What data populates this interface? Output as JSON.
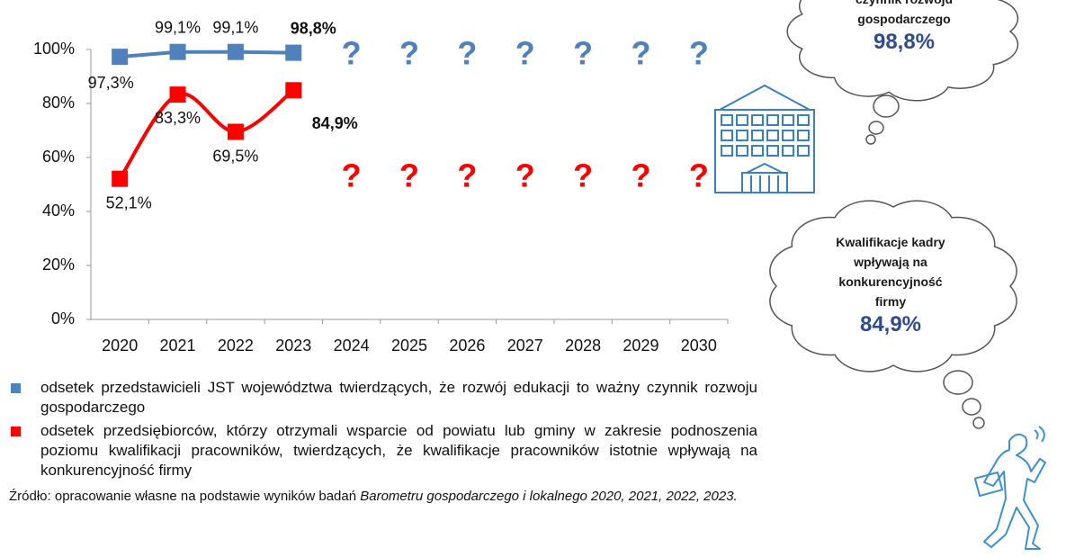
{
  "chart_data": {
    "type": "line",
    "categories": [
      "2020",
      "2021",
      "2022",
      "2023",
      "2024",
      "2025",
      "2026",
      "2027",
      "2028",
      "2029",
      "2030"
    ],
    "series": [
      {
        "name": "odsetek przedstawicieli JST województwa twierdzących, że rozwój edukacji to ważny czynnik rozwoju gospodarczego",
        "color": "#4f81bd",
        "values": [
          97.3,
          99.1,
          99.1,
          98.8,
          null,
          null,
          null,
          null,
          null,
          null,
          null
        ],
        "value_labels": [
          "97,3%",
          "99,1%",
          "99,1%",
          "98,8%",
          null,
          null,
          null,
          null,
          null,
          null,
          null
        ]
      },
      {
        "name": "odsetek przedsiębiorców, którzy otrzymali wsparcie od powiatu lub gminy w zakresie podnoszenia poziomu kwalifikacji pracowników, twierdzących, że kwalifikacje pracowników istotnie wpływają na konkurencyjność firmy",
        "color": "#ff0000",
        "values": [
          52.1,
          83.3,
          69.5,
          84.9,
          null,
          null,
          null,
          null,
          null,
          null,
          null
        ],
        "value_labels": [
          "52,1%",
          "83,3%",
          "69,5%",
          "84,9%",
          null,
          null,
          null,
          null,
          null,
          null,
          null
        ]
      }
    ],
    "unknown_mark": "?",
    "ylim": [
      0,
      100
    ],
    "yticks": [
      {
        "value": 0,
        "label": "0%"
      },
      {
        "value": 20,
        "label": "20%"
      },
      {
        "value": 40,
        "label": "40%"
      },
      {
        "value": 60,
        "label": "60%"
      },
      {
        "value": 80,
        "label": "80%"
      },
      {
        "value": 100,
        "label": "100%"
      }
    ],
    "legend": "bottom"
  },
  "callouts": [
    {
      "lines": [
        "czynnik rozwoju",
        "gospodarczego"
      ],
      "value": "98,8%"
    },
    {
      "lines": [
        "Kwalifikacje kadry",
        "wpływają na",
        "konkurencyjność",
        "firmy"
      ],
      "value": "84,9%"
    }
  ],
  "source": {
    "text": "Źródło: opracowanie własne na podstawie wyników badań ",
    "italic": "Barometru gospodarczego i lokalnego 2020, 2021, 2022, 2023."
  }
}
